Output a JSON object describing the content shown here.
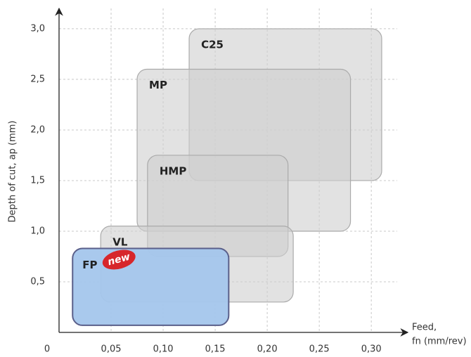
{
  "chart_data": {
    "type": "range",
    "ylabel": "Depth of cut, ap (mm)",
    "xlabel": [
      "Feed,",
      "fn (mm/rev)"
    ],
    "xlim": [
      0,
      0.335
    ],
    "ylim": [
      0,
      3.18
    ],
    "xticks": [
      0,
      {
        "value": 0.05,
        "label": "0,05"
      },
      {
        "value": 0.1,
        "label": "0,10"
      },
      {
        "value": 0.15,
        "label": "0,15"
      },
      {
        "value": 0.2,
        "label": "0,20"
      },
      {
        "value": 0.25,
        "label": "0,25"
      },
      {
        "value": 0.3,
        "label": "0,30"
      }
    ],
    "yticks": [
      {
        "value": 0.5,
        "label": "0,5"
      },
      {
        "value": 1.0,
        "label": "1,0"
      },
      {
        "value": 1.5,
        "label": "1,5"
      },
      {
        "value": 2.0,
        "label": "2,0"
      },
      {
        "value": 2.5,
        "label": "2,5"
      },
      {
        "value": 3.0,
        "label": "3,0"
      }
    ],
    "grid": true,
    "series": [
      {
        "name": "C25",
        "color": "#cfcfcf",
        "x": [
          0.125,
          0.31
        ],
        "y": [
          1.5,
          3.0
        ]
      },
      {
        "name": "MP",
        "color": "#cfcfcf",
        "x": [
          0.075,
          0.28
        ],
        "y": [
          1.0,
          2.6
        ]
      },
      {
        "name": "HMP",
        "color": "#cfcfcf",
        "x": [
          0.085,
          0.22
        ],
        "y": [
          0.75,
          1.75
        ]
      },
      {
        "name": "VL",
        "color": "#cfcfcf",
        "x": [
          0.04,
          0.225
        ],
        "y": [
          0.3,
          1.05
        ]
      },
      {
        "name": "FP",
        "color": "#a4c6ec",
        "x": [
          0.013,
          0.163
        ],
        "y": [
          0.07,
          0.83
        ],
        "badge": "new"
      }
    ]
  }
}
